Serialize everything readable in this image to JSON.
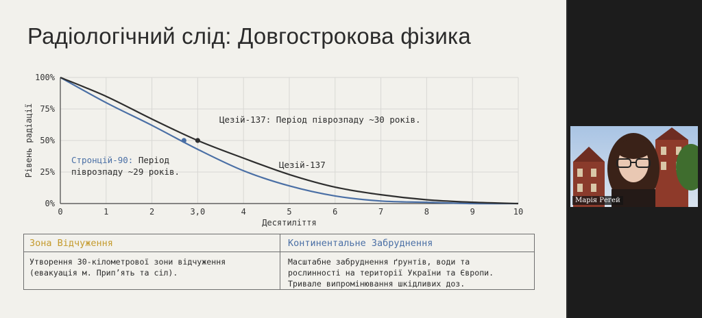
{
  "slide": {
    "title": "Радіологічний слід: Довгострокова фізика"
  },
  "chart_data": {
    "type": "line",
    "xlabel": "Десятиліття",
    "ylabel": "Рівень радіації",
    "xlim": [
      0,
      10
    ],
    "ylim": [
      0,
      100
    ],
    "x_ticks": [
      "0",
      "1",
      "2",
      "3,0",
      "4",
      "5",
      "6",
      "7",
      "8",
      "9",
      "10"
    ],
    "y_ticks": [
      "0%",
      "25%",
      "50%",
      "75%",
      "100%"
    ],
    "grid": true,
    "series": [
      {
        "name": "Цезій-137",
        "color": "#2e2e2e",
        "x": [
          0,
          1,
          2,
          3,
          4,
          5,
          6,
          7,
          8,
          9,
          10
        ],
        "y": [
          100,
          85,
          67,
          50,
          36,
          23,
          13,
          7,
          3,
          1,
          0
        ]
      },
      {
        "name": "Стронцій-90",
        "color": "#4a6fa5",
        "x": [
          0,
          1,
          2,
          3,
          4,
          5,
          6,
          7,
          8,
          9,
          10
        ],
        "y": [
          100,
          80,
          62,
          43,
          26,
          14,
          6,
          2,
          1,
          0,
          0
        ]
      }
    ],
    "markers": [
      {
        "series": "Цезій-137",
        "x": 3.0,
        "y": 50
      },
      {
        "series": "Стронцій-90",
        "x": 2.7,
        "y": 50
      }
    ],
    "annotations": {
      "cesium_callout": "Цезій-137: Період піврозпаду ~30 років.",
      "cesium_label": "Цезій-137",
      "strontium_name": "Стронцій-90:",
      "strontium_rest_1": " Період",
      "strontium_rest_2": "піврозпаду ~29 років."
    }
  },
  "table": {
    "headers": [
      {
        "label": "Зона Відчуження",
        "color": "#c49a2c"
      },
      {
        "label": "Континентальне Забруднення",
        "color": "#4a6fa5"
      }
    ],
    "cells": [
      "Утворення 30-кілометрової зони відчуження\n(евакуація м. Прип’ять та сіл).",
      "Масштабне забруднення ґрунтів, води та\nрослинності на території України та Європи.\nТривале випромінювання шкідливих доз."
    ]
  },
  "participant": {
    "name": "Марія Регей"
  }
}
